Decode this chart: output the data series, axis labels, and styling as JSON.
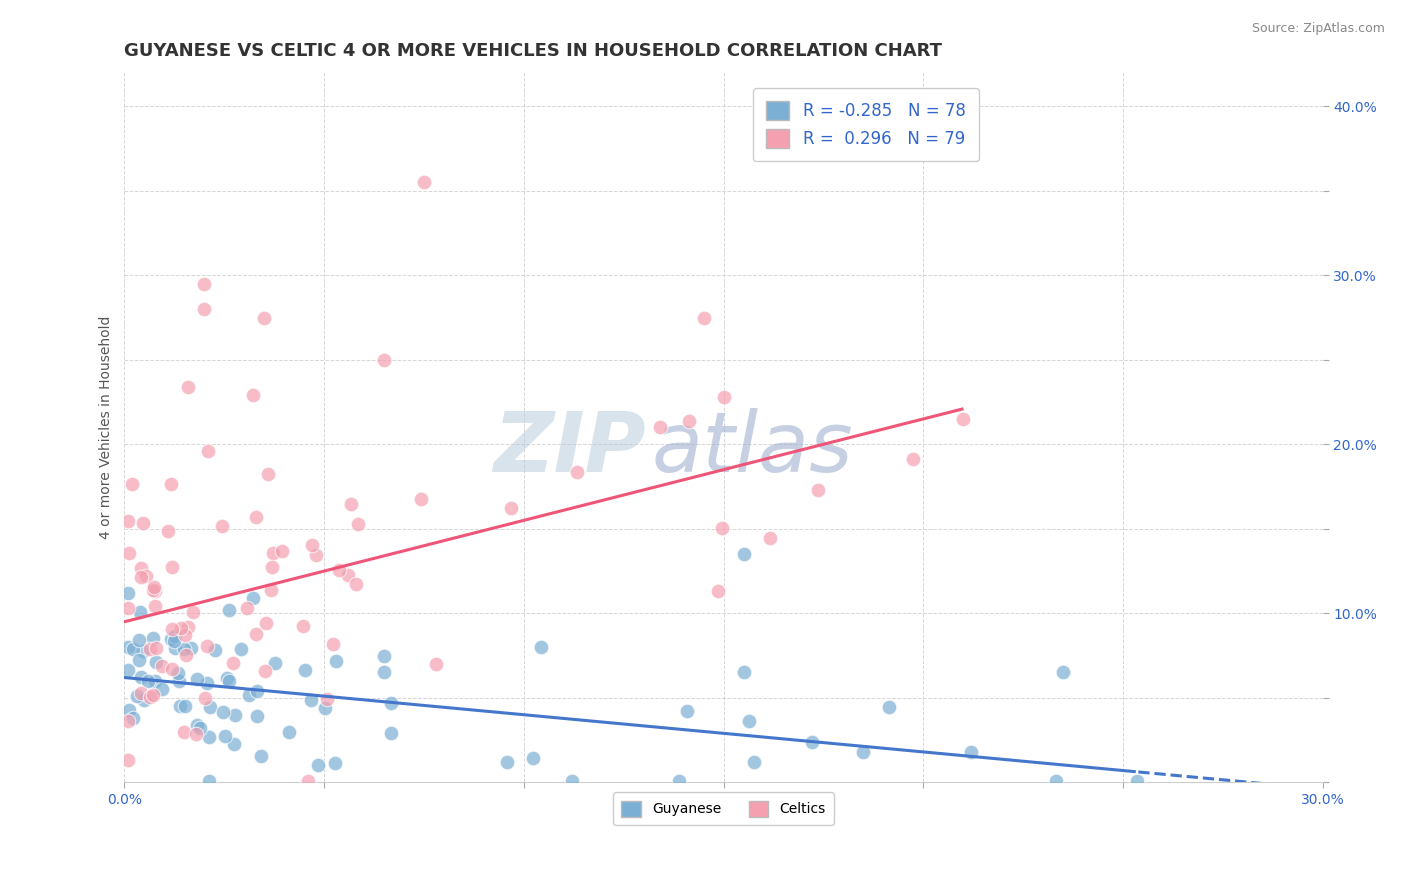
{
  "title": "GUYANESE VS CELTIC 4 OR MORE VEHICLES IN HOUSEHOLD CORRELATION CHART",
  "source_text": "Source: ZipAtlas.com",
  "ylabel_text": "4 or more Vehicles in Household",
  "x_min": 0.0,
  "x_max": 0.3,
  "y_min": 0.0,
  "y_max": 0.42,
  "x_ticks": [
    0.0,
    0.05,
    0.1,
    0.15,
    0.2,
    0.25,
    0.3
  ],
  "y_ticks": [
    0.0,
    0.05,
    0.1,
    0.15,
    0.2,
    0.25,
    0.3,
    0.35,
    0.4
  ],
  "blue_color": "#7BAFD4",
  "pink_color": "#F4A0B0",
  "blue_line_color": "#4477CC",
  "pink_line_color": "#EE5577",
  "watermark_zip": "ZIP",
  "watermark_atlas": "atlas",
  "watermark_color_zip": "#BBCCDD",
  "watermark_color_atlas": "#99AACC",
  "legend_blue_r": "-0.285",
  "legend_blue_n": "78",
  "legend_pink_r": "0.296",
  "legend_pink_n": "79",
  "legend_guyanese": "Guyanese",
  "legend_celtics": "Celtics",
  "title_fontsize": 13,
  "axis_label_fontsize": 10,
  "tick_fontsize": 10,
  "legend_fontsize": 12,
  "blue_intercept": 0.062,
  "blue_slope": -0.22,
  "pink_intercept": 0.095,
  "pink_slope": 0.6
}
